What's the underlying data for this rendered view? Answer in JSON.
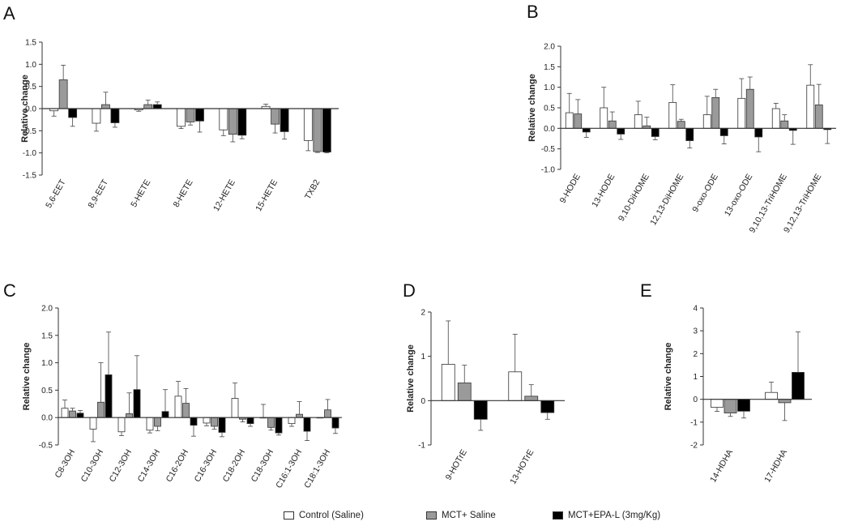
{
  "colors": {
    "control": "#ffffff",
    "mct_saline": "#9a9a9a",
    "mct_epa": "#000000",
    "axis": "#333333"
  },
  "legend": [
    {
      "label": "Control (Saline)",
      "color": "#ffffff"
    },
    {
      "label": "MCT+ Saline",
      "color": "#9a9a9a"
    },
    {
      "label": "MCT+EPA-L (3mg/Kg)",
      "color": "#000000"
    }
  ],
  "chart_data": [
    {
      "panel": "A",
      "type": "bar",
      "title": "",
      "xlabel": "",
      "ylabel": "Relative change",
      "ylim": [
        -1.5,
        1.5
      ],
      "yticks": [
        1.5,
        1.0,
        0.5,
        0.0,
        -0.5,
        -1.0,
        -1.5
      ],
      "ytick_labels": [
        "1.5",
        "1.0",
        "0.5",
        "0.0",
        "-0.5",
        "-1.0",
        "-1.5"
      ],
      "categories": [
        "5,6-EET",
        "8,9-EET",
        "5-HETE",
        "8-HETE",
        "12-HETE",
        "15-HETE",
        "TXB2"
      ],
      "series": [
        {
          "name": "Control (Saline)",
          "values": [
            -0.05,
            -0.33,
            -0.03,
            -0.4,
            -0.48,
            0.05,
            -0.72
          ],
          "errors": [
            0.12,
            0.18,
            0.03,
            0.05,
            0.13,
            0.05,
            0.23
          ]
        },
        {
          "name": "MCT+ Saline",
          "values": [
            0.65,
            0.09,
            0.09,
            -0.3,
            -0.58,
            -0.35,
            -0.97
          ],
          "errors": [
            0.33,
            0.28,
            0.1,
            0.07,
            0.17,
            0.2,
            0.02
          ]
        },
        {
          "name": "MCT+EPA-L (3mg/Kg)",
          "values": [
            -0.2,
            -0.32,
            0.09,
            -0.28,
            -0.6,
            -0.52,
            -0.98
          ],
          "errors": [
            0.2,
            0.1,
            0.06,
            0.25,
            0.08,
            0.17,
            0.02
          ]
        }
      ]
    },
    {
      "panel": "B",
      "type": "bar",
      "title": "",
      "xlabel": "",
      "ylabel": "Relative change",
      "ylim": [
        -1.0,
        2.0
      ],
      "yticks": [
        2.0,
        1.5,
        1.0,
        0.5,
        0.0,
        -0.5,
        -1.0
      ],
      "ytick_labels": [
        "2.0",
        "1.5",
        "1.0",
        "0.5",
        "0.0",
        "-0.5",
        "-1.0"
      ],
      "categories": [
        "9-HODE",
        "13-HODE",
        "9,10-DiHOME",
        "12,13-DiHOME",
        "9-oxo-ODE",
        "13-oxo-ODE",
        "9,10,13-TriHOME",
        "9,12,13-TriHOME"
      ],
      "series": [
        {
          "name": "Control (Saline)",
          "values": [
            0.38,
            0.5,
            0.33,
            0.63,
            0.33,
            0.73,
            0.48,
            1.05
          ],
          "errors": [
            0.47,
            0.5,
            0.33,
            0.43,
            0.45,
            0.48,
            0.13,
            0.5
          ]
        },
        {
          "name": "MCT+ Saline",
          "values": [
            0.35,
            0.18,
            0.06,
            0.17,
            0.75,
            0.95,
            0.18,
            0.57
          ],
          "errors": [
            0.35,
            0.22,
            0.21,
            0.05,
            0.2,
            0.3,
            0.15,
            0.5
          ]
        },
        {
          "name": "MCT+EPA-L (3mg/Kg)",
          "values": [
            -0.09,
            -0.14,
            -0.2,
            -0.3,
            -0.18,
            -0.21,
            -0.05,
            -0.03
          ],
          "errors": [
            0.13,
            0.13,
            0.08,
            0.18,
            0.2,
            0.36,
            0.34,
            0.34
          ]
        }
      ]
    },
    {
      "panel": "C",
      "type": "bar",
      "title": "",
      "xlabel": "",
      "ylabel": "Relative change",
      "ylim": [
        -0.5,
        2.0
      ],
      "yticks": [
        2.0,
        1.5,
        1.0,
        0.5,
        0.0,
        -0.5
      ],
      "ytick_labels": [
        "2.0",
        "1.5",
        "1.0",
        "0.5",
        "0.0",
        "-0.5"
      ],
      "categories": [
        "C8-3OH",
        "C10-3OH",
        "C12-3OH",
        "C14-3OH",
        "C16-2OH",
        "C16-3OH",
        "C18-2OH",
        "C18-3OH",
        "C16:1-3OH",
        "C18:1-3OH"
      ],
      "series": [
        {
          "name": "Control (Saline)",
          "values": [
            0.17,
            -0.21,
            -0.26,
            -0.23,
            0.39,
            -0.1,
            0.35,
            0.0,
            -0.11,
            0.0
          ],
          "errors": [
            0.15,
            0.23,
            0.07,
            0.05,
            0.27,
            0.05,
            0.28,
            0.24,
            0.05,
            0.0
          ]
        },
        {
          "name": "MCT+ Saline",
          "values": [
            0.12,
            0.28,
            0.07,
            -0.16,
            0.26,
            -0.16,
            -0.03,
            -0.18,
            0.06,
            0.14
          ],
          "errors": [
            0.05,
            0.72,
            0.38,
            0.08,
            0.27,
            0.05,
            0.05,
            0.05,
            0.23,
            0.19
          ]
        },
        {
          "name": "MCT+EPA-L (3mg/Kg)",
          "values": [
            0.08,
            0.78,
            0.51,
            0.11,
            -0.14,
            -0.27,
            -0.11,
            -0.28,
            -0.25,
            -0.19
          ],
          "errors": [
            0.05,
            0.78,
            0.62,
            0.4,
            0.2,
            0.08,
            0.05,
            0.04,
            0.17,
            0.1
          ]
        }
      ]
    },
    {
      "panel": "D",
      "type": "bar",
      "title": "",
      "xlabel": "",
      "ylabel": "Relative change",
      "ylim": [
        -1,
        2
      ],
      "yticks": [
        2,
        1,
        0,
        -1
      ],
      "ytick_labels": [
        "2",
        "1",
        "0",
        "-1"
      ],
      "categories": [
        "9-HOTrE",
        "13-HOTrE"
      ],
      "series": [
        {
          "name": "Control (Saline)",
          "values": [
            0.82,
            0.65
          ],
          "errors": [
            0.98,
            0.85
          ]
        },
        {
          "name": "MCT+ Saline",
          "values": [
            0.4,
            0.1
          ],
          "errors": [
            0.4,
            0.26
          ]
        },
        {
          "name": "MCT+EPA-L (3mg/Kg)",
          "values": [
            -0.42,
            -0.27
          ],
          "errors": [
            0.25,
            0.15
          ]
        }
      ]
    },
    {
      "panel": "E",
      "type": "bar",
      "title": "",
      "xlabel": "",
      "ylabel": "Relative change",
      "ylim": [
        -2,
        4
      ],
      "yticks": [
        4,
        3,
        2,
        1,
        0,
        -1,
        -2
      ],
      "ytick_labels": [
        "4",
        "3",
        "2",
        "1",
        "0",
        "-1",
        "-2"
      ],
      "categories": [
        "14-HDHA",
        "17-HDHA"
      ],
      "series": [
        {
          "name": "Control (Saline)",
          "values": [
            -0.35,
            0.3
          ],
          "errors": [
            0.18,
            0.45
          ]
        },
        {
          "name": "MCT+ Saline",
          "values": [
            -0.6,
            -0.15
          ],
          "errors": [
            0.15,
            0.78
          ]
        },
        {
          "name": "MCT+EPA-L (3mg/Kg)",
          "values": [
            -0.52,
            1.18
          ],
          "errors": [
            0.3,
            1.77
          ]
        }
      ]
    }
  ]
}
